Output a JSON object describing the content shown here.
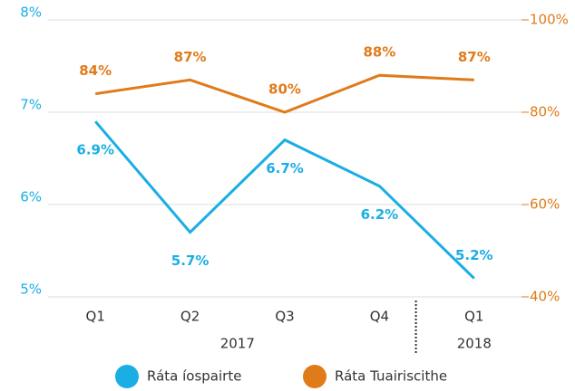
{
  "chart_data": {
    "type": "line",
    "categories": [
      "Q1",
      "Q2",
      "Q3",
      "Q4",
      "Q1"
    ],
    "category_groups": [
      {
        "label": "2017",
        "count": 4
      },
      {
        "label": "2018",
        "count": 1
      }
    ],
    "series": [
      {
        "name": "Ráta íospairte",
        "color": "#1aaee5",
        "axis": "y",
        "values": [
          6.9,
          5.7,
          6.7,
          6.2,
          5.2
        ],
        "value_labels": [
          "6.9%",
          "5.7%",
          "6.7%",
          "6.2%",
          "5.2%"
        ]
      },
      {
        "name": "Ráta Tuairiscithe",
        "color": "#e07b1a",
        "axis": "y2",
        "values": [
          84,
          87,
          80,
          88,
          87
        ],
        "value_labels": [
          "84%",
          "87%",
          "80%",
          "88%",
          "87%"
        ]
      }
    ],
    "ylim": [
      5,
      8
    ],
    "yticks": [
      {
        "value": 5,
        "label": "5%"
      },
      {
        "value": 6,
        "label": "6%"
      },
      {
        "value": 7,
        "label": "7%"
      },
      {
        "value": 8,
        "label": "8%"
      }
    ],
    "y2lim": [
      40,
      100
    ],
    "y2ticks": [
      {
        "value": 40,
        "label": "40%"
      },
      {
        "value": 60,
        "label": "60%"
      },
      {
        "value": 80,
        "label": "80%"
      },
      {
        "value": 100,
        "label": "100%"
      }
    ],
    "grid": true,
    "legend": "bottom"
  }
}
